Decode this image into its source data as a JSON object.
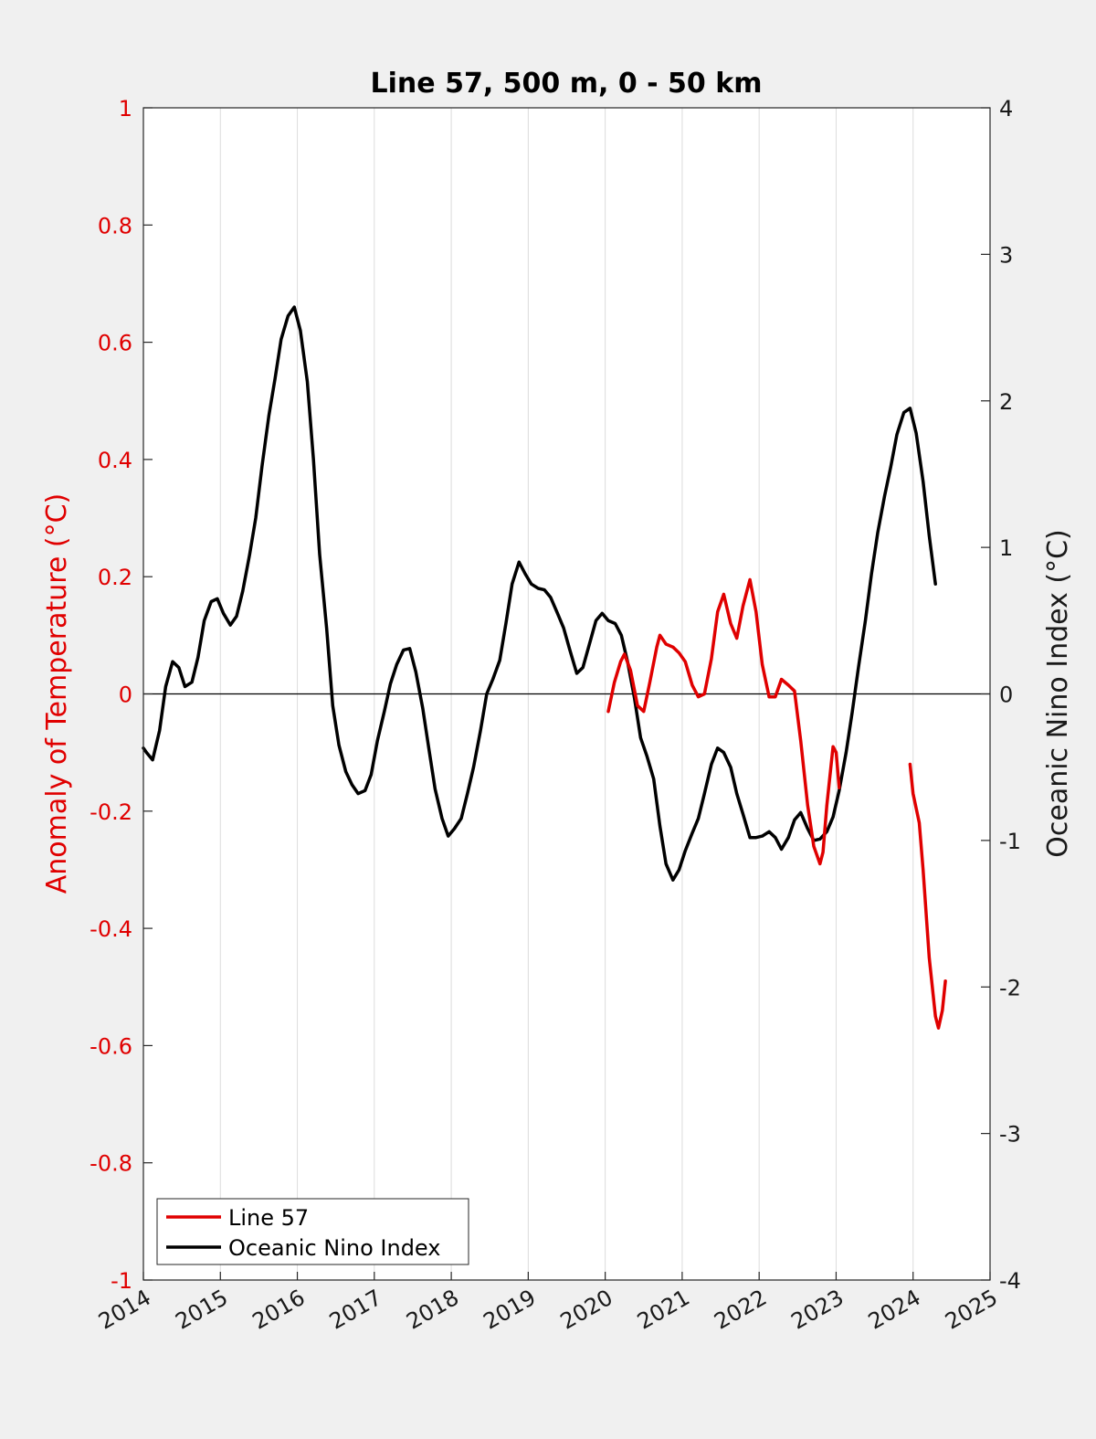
{
  "chart_data": {
    "type": "line",
    "title": "Line 57, 500 m, 0 - 50 km",
    "ylabel_left": "Anomaly of Temperature (°C)",
    "ylabel_right": "Oceanic Nino Index (°C)",
    "xlim": [
      2014,
      2025
    ],
    "ylim_left": [
      -1,
      1
    ],
    "ylim_right": [
      -4,
      4
    ],
    "x_ticks": [
      "2014",
      "2015",
      "2016",
      "2017",
      "2018",
      "2019",
      "2020",
      "2021",
      "2022",
      "2023",
      "2024",
      "2025"
    ],
    "y_ticks_left": [
      "-1",
      "-0.8",
      "-0.6",
      "-0.4",
      "-0.2",
      "0",
      "0.2",
      "0.4",
      "0.6",
      "0.8",
      "1"
    ],
    "y_ticks_right": [
      "-4",
      "-3",
      "-2",
      "-1",
      "0",
      "1",
      "2",
      "3",
      "4"
    ],
    "grid": "vertical",
    "legend_position": "bottom-left",
    "colors": {
      "line57": "#e00000",
      "oni": "#000000",
      "zero_line": "#000000",
      "grid": "#dcdcdc"
    },
    "series": [
      {
        "name": "Line 57",
        "axis": "left",
        "segments": [
          [
            [
              2020.04,
              -0.03
            ],
            [
              2020.12,
              0.02
            ],
            [
              2020.2,
              0.055
            ],
            [
              2020.25,
              0.068
            ],
            [
              2020.33,
              0.04
            ],
            [
              2020.42,
              -0.02
            ],
            [
              2020.5,
              -0.03
            ],
            [
              2020.58,
              0.02
            ],
            [
              2020.67,
              0.08
            ],
            [
              2020.71,
              0.1
            ],
            [
              2020.79,
              0.085
            ],
            [
              2020.88,
              0.08
            ],
            [
              2020.96,
              0.07
            ],
            [
              2021.04,
              0.055
            ],
            [
              2021.13,
              0.015
            ],
            [
              2021.21,
              -0.005
            ],
            [
              2021.29,
              0.0
            ],
            [
              2021.38,
              0.06
            ],
            [
              2021.46,
              0.14
            ],
            [
              2021.54,
              0.17
            ],
            [
              2021.63,
              0.12
            ],
            [
              2021.71,
              0.095
            ],
            [
              2021.79,
              0.15
            ],
            [
              2021.88,
              0.195
            ],
            [
              2021.96,
              0.14
            ],
            [
              2022.04,
              0.05
            ],
            [
              2022.13,
              -0.005
            ],
            [
              2022.21,
              -0.005
            ],
            [
              2022.29,
              0.025
            ],
            [
              2022.38,
              0.015
            ],
            [
              2022.46,
              0.005
            ],
            [
              2022.54,
              -0.08
            ],
            [
              2022.63,
              -0.19
            ],
            [
              2022.71,
              -0.26
            ],
            [
              2022.79,
              -0.29
            ],
            [
              2022.83,
              -0.27
            ],
            [
              2022.88,
              -0.19
            ],
            [
              2022.96,
              -0.09
            ],
            [
              2023.0,
              -0.1
            ],
            [
              2023.04,
              -0.16
            ]
          ],
          [
            [
              2023.96,
              -0.12
            ],
            [
              2024.0,
              -0.17
            ],
            [
              2024.08,
              -0.22
            ],
            [
              2024.13,
              -0.3
            ],
            [
              2024.21,
              -0.45
            ],
            [
              2024.29,
              -0.55
            ],
            [
              2024.33,
              -0.57
            ],
            [
              2024.38,
              -0.54
            ],
            [
              2024.42,
              -0.49
            ]
          ]
        ]
      },
      {
        "name": "Oceanic Nino Index",
        "axis": "right",
        "segments": [
          [
            [
              2014.0,
              -0.37
            ],
            [
              2014.04,
              -0.4
            ],
            [
              2014.12,
              -0.45
            ],
            [
              2014.21,
              -0.25
            ],
            [
              2014.29,
              0.05
            ],
            [
              2014.38,
              0.22
            ],
            [
              2014.46,
              0.18
            ],
            [
              2014.54,
              0.05
            ],
            [
              2014.63,
              0.08
            ],
            [
              2014.71,
              0.25
            ],
            [
              2014.79,
              0.5
            ],
            [
              2014.88,
              0.63
            ],
            [
              2014.96,
              0.65
            ],
            [
              2015.04,
              0.55
            ],
            [
              2015.13,
              0.47
            ],
            [
              2015.21,
              0.53
            ],
            [
              2015.29,
              0.7
            ],
            [
              2015.38,
              0.95
            ],
            [
              2015.46,
              1.2
            ],
            [
              2015.54,
              1.55
            ],
            [
              2015.63,
              1.9
            ],
            [
              2015.71,
              2.15
            ],
            [
              2015.79,
              2.42
            ],
            [
              2015.88,
              2.58
            ],
            [
              2015.96,
              2.64
            ],
            [
              2016.04,
              2.48
            ],
            [
              2016.13,
              2.13
            ],
            [
              2016.21,
              1.6
            ],
            [
              2016.29,
              0.95
            ],
            [
              2016.38,
              0.45
            ],
            [
              2016.46,
              -0.08
            ],
            [
              2016.54,
              -0.35
            ],
            [
              2016.63,
              -0.53
            ],
            [
              2016.71,
              -0.62
            ],
            [
              2016.79,
              -0.68
            ],
            [
              2016.88,
              -0.66
            ],
            [
              2016.96,
              -0.55
            ],
            [
              2017.04,
              -0.32
            ],
            [
              2017.13,
              -0.12
            ],
            [
              2017.21,
              0.07
            ],
            [
              2017.29,
              0.2
            ],
            [
              2017.38,
              0.3
            ],
            [
              2017.46,
              0.31
            ],
            [
              2017.54,
              0.15
            ],
            [
              2017.63,
              -0.1
            ],
            [
              2017.71,
              -0.38
            ],
            [
              2017.79,
              -0.65
            ],
            [
              2017.88,
              -0.85
            ],
            [
              2017.96,
              -0.97
            ],
            [
              2018.04,
              -0.92
            ],
            [
              2018.13,
              -0.85
            ],
            [
              2018.21,
              -0.68
            ],
            [
              2018.29,
              -0.5
            ],
            [
              2018.38,
              -0.25
            ],
            [
              2018.46,
              0.0
            ],
            [
              2018.54,
              0.1
            ],
            [
              2018.63,
              0.23
            ],
            [
              2018.71,
              0.48
            ],
            [
              2018.79,
              0.75
            ],
            [
              2018.88,
              0.9
            ],
            [
              2018.96,
              0.82
            ],
            [
              2019.04,
              0.75
            ],
            [
              2019.13,
              0.72
            ],
            [
              2019.21,
              0.71
            ],
            [
              2019.29,
              0.66
            ],
            [
              2019.38,
              0.55
            ],
            [
              2019.46,
              0.45
            ],
            [
              2019.54,
              0.3
            ],
            [
              2019.63,
              0.14
            ],
            [
              2019.71,
              0.18
            ],
            [
              2019.79,
              0.33
            ],
            [
              2019.88,
              0.5
            ],
            [
              2019.96,
              0.55
            ],
            [
              2020.04,
              0.5
            ],
            [
              2020.13,
              0.48
            ],
            [
              2020.21,
              0.4
            ],
            [
              2020.29,
              0.22
            ],
            [
              2020.38,
              -0.03
            ],
            [
              2020.46,
              -0.3
            ],
            [
              2020.54,
              -0.42
            ],
            [
              2020.63,
              -0.58
            ],
            [
              2020.71,
              -0.9
            ],
            [
              2020.79,
              -1.16
            ],
            [
              2020.88,
              -1.27
            ],
            [
              2020.96,
              -1.2
            ],
            [
              2021.04,
              -1.07
            ],
            [
              2021.13,
              -0.95
            ],
            [
              2021.21,
              -0.85
            ],
            [
              2021.29,
              -0.68
            ],
            [
              2021.38,
              -0.48
            ],
            [
              2021.46,
              -0.37
            ],
            [
              2021.54,
              -0.4
            ],
            [
              2021.63,
              -0.5
            ],
            [
              2021.71,
              -0.68
            ],
            [
              2021.79,
              -0.82
            ],
            [
              2021.88,
              -0.98
            ],
            [
              2021.96,
              -0.98
            ],
            [
              2022.04,
              -0.97
            ],
            [
              2022.13,
              -0.94
            ],
            [
              2022.21,
              -0.98
            ],
            [
              2022.29,
              -1.06
            ],
            [
              2022.38,
              -0.98
            ],
            [
              2022.46,
              -0.86
            ],
            [
              2022.54,
              -0.81
            ],
            [
              2022.63,
              -0.92
            ],
            [
              2022.71,
              -1.0
            ],
            [
              2022.79,
              -0.99
            ],
            [
              2022.88,
              -0.94
            ],
            [
              2022.96,
              -0.84
            ],
            [
              2023.04,
              -0.66
            ],
            [
              2023.13,
              -0.4
            ],
            [
              2023.21,
              -0.12
            ],
            [
              2023.29,
              0.18
            ],
            [
              2023.38,
              0.5
            ],
            [
              2023.46,
              0.82
            ],
            [
              2023.54,
              1.1
            ],
            [
              2023.63,
              1.35
            ],
            [
              2023.71,
              1.55
            ],
            [
              2023.79,
              1.77
            ],
            [
              2023.88,
              1.92
            ],
            [
              2023.96,
              1.95
            ],
            [
              2024.04,
              1.78
            ],
            [
              2024.13,
              1.45
            ],
            [
              2024.21,
              1.08
            ],
            [
              2024.29,
              0.75
            ]
          ]
        ]
      }
    ]
  }
}
